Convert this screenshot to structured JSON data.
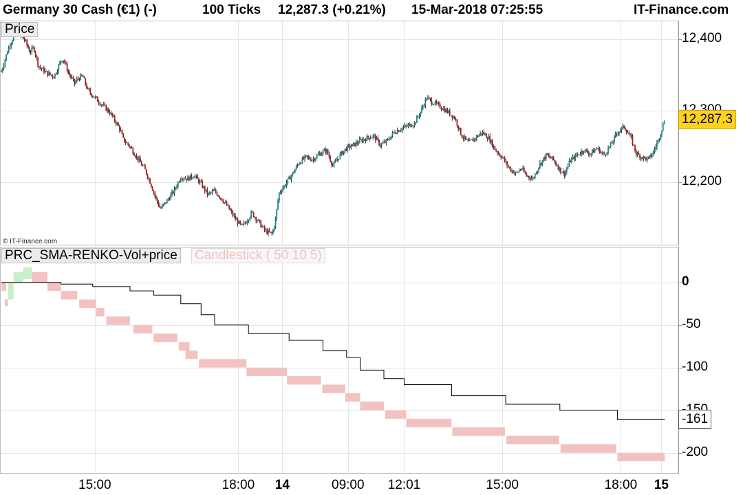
{
  "header": {
    "instrument": "Germany 30 Cash (€1) (-)",
    "timeframe": "100 Ticks",
    "last_price": "12,287.3 (+0.21%)",
    "datetime": "15-Mar-2018 07:25:55",
    "brand": "IT-Finance.com"
  },
  "copyright": "© IT-Finance.com",
  "chart_data": [
    {
      "type": "candlestick",
      "panel_label": "Price",
      "y_ticks": [
        "12,400",
        "12,300",
        "12,200"
      ],
      "y_tick_values": [
        12400,
        12300,
        12200
      ],
      "ylim": [
        12115,
        12420
      ],
      "last_value_label": "12,287.3",
      "last_value": 12287.3,
      "colors": {
        "up": "#0e8a8a",
        "down": "#b01818",
        "wick": "#000000",
        "badge": "#ffd21f"
      },
      "path_points": [
        [
          0,
          12355
        ],
        [
          1.2,
          12392
        ],
        [
          2.2,
          12410
        ],
        [
          3.5,
          12398
        ],
        [
          4.2,
          12382
        ],
        [
          4.8,
          12388
        ],
        [
          5.5,
          12362
        ],
        [
          6.8,
          12352
        ],
        [
          7.8,
          12348
        ],
        [
          8.8,
          12370
        ],
        [
          9.2,
          12372
        ],
        [
          9.8,
          12355
        ],
        [
          10.8,
          12338
        ],
        [
          11.3,
          12345
        ],
        [
          12,
          12348
        ],
        [
          12.8,
          12328
        ],
        [
          14.5,
          12312
        ],
        [
          16,
          12298
        ],
        [
          17.5,
          12275
        ],
        [
          18,
          12260
        ],
        [
          19,
          12250
        ],
        [
          19.8,
          12238
        ],
        [
          20.5,
          12228
        ],
        [
          21.2,
          12218
        ],
        [
          22,
          12200
        ],
        [
          22.8,
          12178
        ],
        [
          23.5,
          12163
        ],
        [
          24.5,
          12175
        ],
        [
          25.5,
          12188
        ],
        [
          26.5,
          12208
        ],
        [
          27.5,
          12205
        ],
        [
          28.5,
          12210
        ],
        [
          29.5,
          12198
        ],
        [
          30.5,
          12183
        ],
        [
          31.5,
          12188
        ],
        [
          32.5,
          12178
        ],
        [
          33.5,
          12165
        ],
        [
          34.5,
          12150
        ],
        [
          35.5,
          12138
        ],
        [
          36.2,
          12146
        ],
        [
          37,
          12158
        ],
        [
          38,
          12145
        ],
        [
          39,
          12132
        ],
        [
          40,
          12128
        ],
        [
          40.5,
          12148
        ],
        [
          41,
          12185
        ],
        [
          42,
          12198
        ],
        [
          43,
          12212
        ],
        [
          44,
          12228
        ],
        [
          45,
          12235
        ],
        [
          46,
          12232
        ],
        [
          47,
          12240
        ],
        [
          48,
          12245
        ],
        [
          49,
          12223
        ],
        [
          50,
          12238
        ],
        [
          51,
          12248
        ],
        [
          52,
          12252
        ],
        [
          53,
          12258
        ],
        [
          54,
          12262
        ],
        [
          55,
          12265
        ],
        [
          56,
          12252
        ],
        [
          57,
          12258
        ],
        [
          58,
          12270
        ],
        [
          59,
          12275
        ],
        [
          60,
          12279
        ],
        [
          61,
          12282
        ],
        [
          62,
          12300
        ],
        [
          62.8,
          12318
        ],
        [
          64,
          12310
        ],
        [
          65,
          12305
        ],
        [
          66,
          12298
        ],
        [
          67,
          12290
        ],
        [
          68,
          12265
        ],
        [
          69,
          12255
        ],
        [
          70,
          12262
        ],
        [
          71,
          12270
        ],
        [
          72,
          12262
        ],
        [
          73,
          12245
        ],
        [
          74,
          12235
        ],
        [
          75,
          12220
        ],
        [
          76,
          12212
        ],
        [
          76.8,
          12220
        ],
        [
          77.5,
          12210
        ],
        [
          78.5,
          12205
        ],
        [
          79.5,
          12225
        ],
        [
          80.5,
          12238
        ],
        [
          81.5,
          12232
        ],
        [
          82.5,
          12218
        ],
        [
          83.2,
          12212
        ],
        [
          84,
          12230
        ],
        [
          85,
          12238
        ],
        [
          86,
          12245
        ],
        [
          87,
          12240
        ],
        [
          88,
          12248
        ],
        [
          89,
          12238
        ],
        [
          90,
          12252
        ],
        [
          91,
          12270
        ],
        [
          92,
          12278
        ],
        [
          93,
          12262
        ],
        [
          93.8,
          12240
        ],
        [
          94.5,
          12236
        ],
        [
          95.5,
          12232
        ],
        [
          96.2,
          12240
        ],
        [
          97,
          12258
        ],
        [
          98,
          12288
        ]
      ]
    },
    {
      "type": "line",
      "panel_label": "PRC_SMA-RENKO-Vol+price",
      "secondary_label": "Candlestick ( 50 10 5)",
      "y_ticks": [
        "0",
        "-50",
        "-100",
        "-150",
        "-200"
      ],
      "y_tick_values": [
        0,
        -50,
        -100,
        -150,
        -200
      ],
      "ylim": [
        -210,
        24
      ],
      "last_value_label": "-161",
      "last_value": -161,
      "colors": {
        "line": "#000000",
        "renko_down": "#f2c2c2",
        "renko_up": "#c8efc8"
      },
      "step_line": [
        [
          0,
          0
        ],
        [
          8.8,
          0
        ],
        [
          8.8,
          -2
        ],
        [
          13.5,
          -2
        ],
        [
          13.5,
          -5
        ],
        [
          19,
          -5
        ],
        [
          19,
          -10
        ],
        [
          22.5,
          -10
        ],
        [
          22.5,
          -15
        ],
        [
          26.5,
          -15
        ],
        [
          26.5,
          -25
        ],
        [
          29.5,
          -25
        ],
        [
          29.5,
          -38
        ],
        [
          31.5,
          -38
        ],
        [
          31.5,
          -50
        ],
        [
          36.5,
          -50
        ],
        [
          36.5,
          -60
        ],
        [
          42.5,
          -60
        ],
        [
          42.5,
          -68
        ],
        [
          47.5,
          -68
        ],
        [
          47.5,
          -80
        ],
        [
          51,
          -80
        ],
        [
          51,
          -88
        ],
        [
          53,
          -88
        ],
        [
          53,
          -103
        ],
        [
          56.5,
          -103
        ],
        [
          56.5,
          -113
        ],
        [
          59.5,
          -113
        ],
        [
          59.5,
          -120
        ],
        [
          66.5,
          -120
        ],
        [
          66.5,
          -133
        ],
        [
          74.5,
          -133
        ],
        [
          74.5,
          -143
        ],
        [
          82.5,
          -143
        ],
        [
          82.5,
          -150
        ],
        [
          91,
          -150
        ],
        [
          91,
          -161
        ],
        [
          98,
          -161
        ]
      ],
      "renko_bricks": [
        {
          "x0": 0,
          "x1": 0.7,
          "top": 0,
          "bottom": -10,
          "dir": "down"
        },
        {
          "x0": 0.5,
          "x1": 1.0,
          "top": -20,
          "bottom": -28,
          "dir": "down"
        },
        {
          "x0": 1.0,
          "x1": 1.8,
          "top": 0,
          "bottom": -20,
          "dir": "up"
        },
        {
          "x0": 1.8,
          "x1": 3.2,
          "top": 12,
          "bottom": 0,
          "dir": "up"
        },
        {
          "x0": 3.2,
          "x1": 4.5,
          "top": 18,
          "bottom": 4,
          "dir": "up"
        },
        {
          "x0": 4.5,
          "x1": 6.8,
          "top": 12,
          "bottom": 0,
          "dir": "down"
        },
        {
          "x0": 6.8,
          "x1": 8.8,
          "top": 0,
          "bottom": -10,
          "dir": "down"
        },
        {
          "x0": 8.8,
          "x1": 11.2,
          "top": -10,
          "bottom": -20,
          "dir": "down"
        },
        {
          "x0": 11.5,
          "x1": 14.0,
          "top": -20,
          "bottom": -30,
          "dir": "down"
        },
        {
          "x0": 14.0,
          "x1": 15.2,
          "top": -30,
          "bottom": -40,
          "dir": "down"
        },
        {
          "x0": 15.5,
          "x1": 19.0,
          "top": -40,
          "bottom": -50,
          "dir": "down"
        },
        {
          "x0": 19.5,
          "x1": 22.3,
          "top": -50,
          "bottom": -60,
          "dir": "down"
        },
        {
          "x0": 22.5,
          "x1": 26.0,
          "top": -60,
          "bottom": -70,
          "dir": "down"
        },
        {
          "x0": 26.2,
          "x1": 27.8,
          "top": -70,
          "bottom": -80,
          "dir": "down"
        },
        {
          "x0": 27.2,
          "x1": 29.0,
          "top": -80,
          "bottom": -90,
          "dir": "down"
        },
        {
          "x0": 29.2,
          "x1": 36.2,
          "top": -90,
          "bottom": -100,
          "dir": "down"
        },
        {
          "x0": 36.2,
          "x1": 42.2,
          "top": -100,
          "bottom": -110,
          "dir": "down"
        },
        {
          "x0": 42.2,
          "x1": 47.2,
          "top": -110,
          "bottom": -120,
          "dir": "down"
        },
        {
          "x0": 47.4,
          "x1": 50.8,
          "top": -120,
          "bottom": -130,
          "dir": "down"
        },
        {
          "x0": 50.8,
          "x1": 53.0,
          "top": -130,
          "bottom": -140,
          "dir": "down"
        },
        {
          "x0": 53.0,
          "x1": 56.5,
          "top": -140,
          "bottom": -150,
          "dir": "down"
        },
        {
          "x0": 56.7,
          "x1": 59.8,
          "top": -150,
          "bottom": -160,
          "dir": "down"
        },
        {
          "x0": 59.8,
          "x1": 66.5,
          "top": -160,
          "bottom": -170,
          "dir": "down"
        },
        {
          "x0": 66.6,
          "x1": 74.4,
          "top": -170,
          "bottom": -180,
          "dir": "down"
        },
        {
          "x0": 74.6,
          "x1": 82.4,
          "top": -180,
          "bottom": -190,
          "dir": "down"
        },
        {
          "x0": 82.6,
          "x1": 90.8,
          "top": -190,
          "bottom": -200,
          "dir": "down"
        },
        {
          "x0": 91.0,
          "x1": 98.0,
          "top": -200,
          "bottom": -210,
          "dir": "down"
        }
      ]
    }
  ],
  "x_axis": {
    "xlim": [
      0,
      100
    ],
    "ticks": [
      {
        "label": "15:00",
        "pos": 13.8,
        "bold": false
      },
      {
        "label": "18:00",
        "pos": 35,
        "bold": false
      },
      {
        "label": "14",
        "pos": 41.5,
        "bold": true
      },
      {
        "label": "09:00",
        "pos": 51.2,
        "bold": false
      },
      {
        "label": "12:01",
        "pos": 59.5,
        "bold": false
      },
      {
        "label": "15:00",
        "pos": 74,
        "bold": false
      },
      {
        "label": "18:00",
        "pos": 91.5,
        "bold": false
      },
      {
        "label": "15",
        "pos": 97.5,
        "bold": true
      }
    ]
  }
}
